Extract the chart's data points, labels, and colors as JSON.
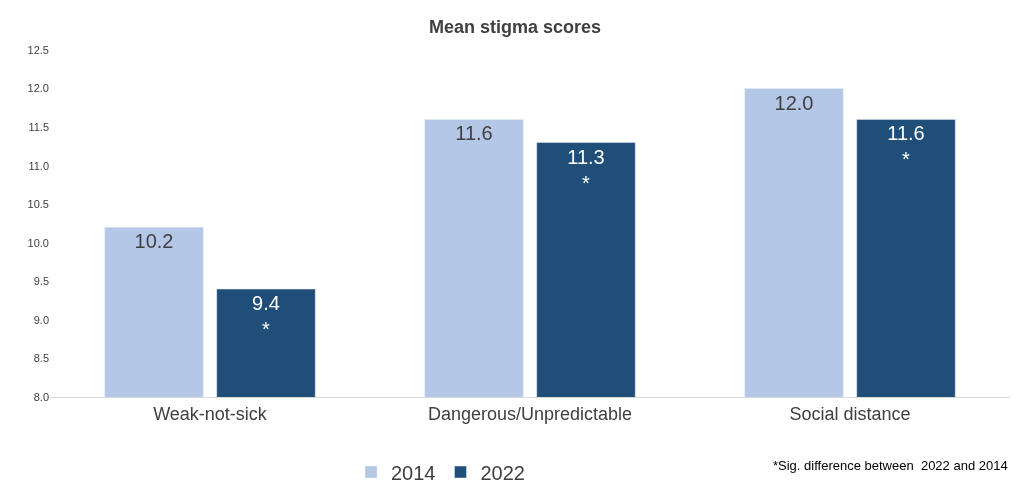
{
  "chart_data": {
    "type": "bar",
    "title": "Mean stigma scores",
    "categories": [
      "Weak-not-sick",
      "Dangerous/Unpredictable",
      "Social distance"
    ],
    "series": [
      {
        "name": "2014",
        "color": "#b4c7e7",
        "values": [
          10.2,
          11.6,
          12.0
        ],
        "value_labels": [
          "10.2",
          "11.6",
          "12.0"
        ]
      },
      {
        "name": "2022",
        "color": "#1f4e79",
        "values": [
          9.4,
          11.3,
          11.6
        ],
        "value_labels": [
          "9.4\n*",
          "11.3\n*",
          "11.6\n*"
        ]
      }
    ],
    "ylim": [
      8.0,
      12.5
    ],
    "yticks": [
      {
        "value": 8.0,
        "label": "8.0"
      },
      {
        "value": 8.5,
        "label": "8.5"
      },
      {
        "value": 9.0,
        "label": "9.0"
      },
      {
        "value": 9.5,
        "label": "9.5"
      },
      {
        "value": 10.0,
        "label": "10.0"
      },
      {
        "value": 10.5,
        "label": "10.5"
      },
      {
        "value": 11.0,
        "label": "11.0"
      },
      {
        "value": 11.5,
        "label": "11.5"
      },
      {
        "value": 12.0,
        "label": "12.0"
      },
      {
        "value": 12.5,
        "label": "12.5"
      }
    ],
    "grid": false,
    "legend": "bottom",
    "annotations": [
      "*Sig. difference between  2022 and 2014"
    ]
  }
}
